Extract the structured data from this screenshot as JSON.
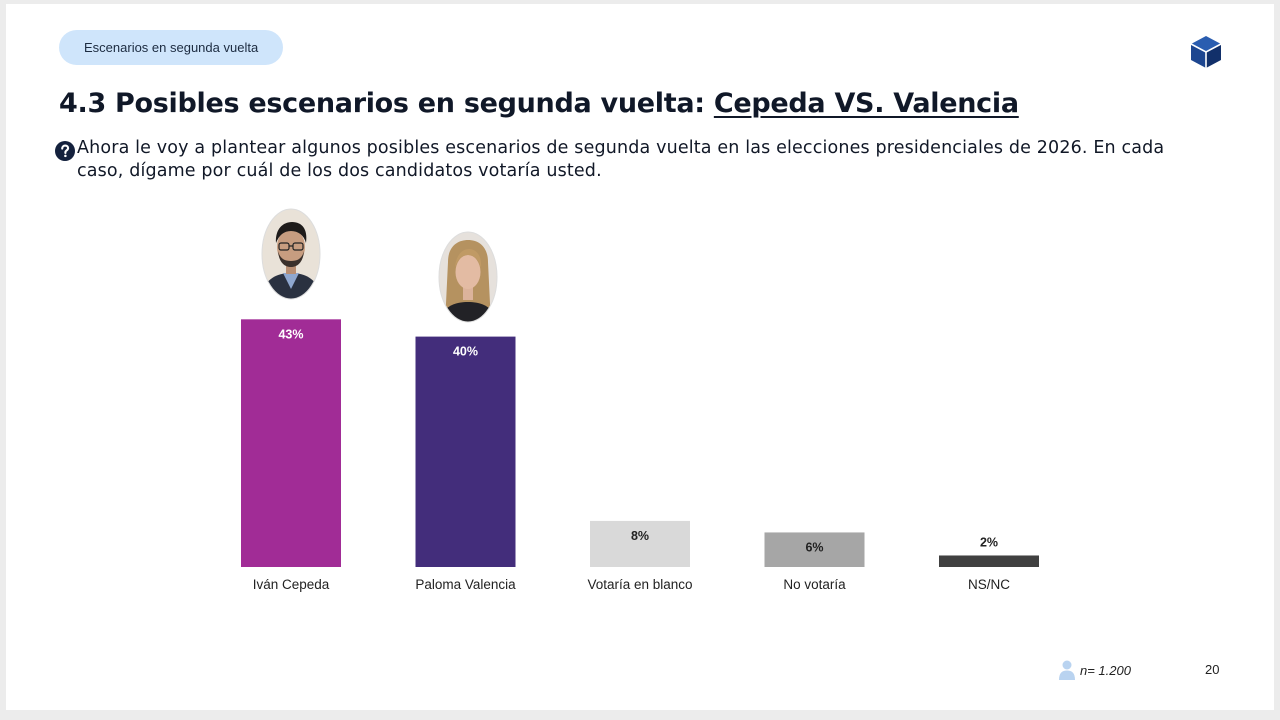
{
  "header": {
    "section_tag": "Escenarios en segunda vuelta",
    "title_prefix": "4.3 Posibles escenarios en segunda vuelta: ",
    "title_highlight": "Cepeda VS. Valencia"
  },
  "question": {
    "icon": "question-circle-icon",
    "text": "Ahora le voy a plantear algunos posibles escenarios de segunda vuelta en las elecciones presidenciales de 2026. En cada caso, dígame por cuál de los dos candidatos votaría usted."
  },
  "chart_data": {
    "type": "bar",
    "title": "",
    "xlabel": "",
    "ylabel": "",
    "ylim": [
      0,
      50
    ],
    "categories": [
      "Iván Cepeda",
      "Paloma Valencia",
      "Votaría en blanco",
      "No votaría",
      "NS/NC"
    ],
    "values": [
      43,
      40,
      8,
      6,
      2
    ],
    "value_labels": [
      "43%",
      "40%",
      "8%",
      "6%",
      "2%"
    ],
    "colors": [
      "#a12c96",
      "#432d7b",
      "#d9d9d9",
      "#a6a6a6",
      "#404040"
    ],
    "label_colors": [
      "#ffffff",
      "#ffffff",
      "#222222",
      "#222222",
      "#222222"
    ],
    "label_position": [
      "inside",
      "inside",
      "inside",
      "inside",
      "above"
    ]
  },
  "footer": {
    "sample": "n= 1.200",
    "page_number": "20"
  }
}
